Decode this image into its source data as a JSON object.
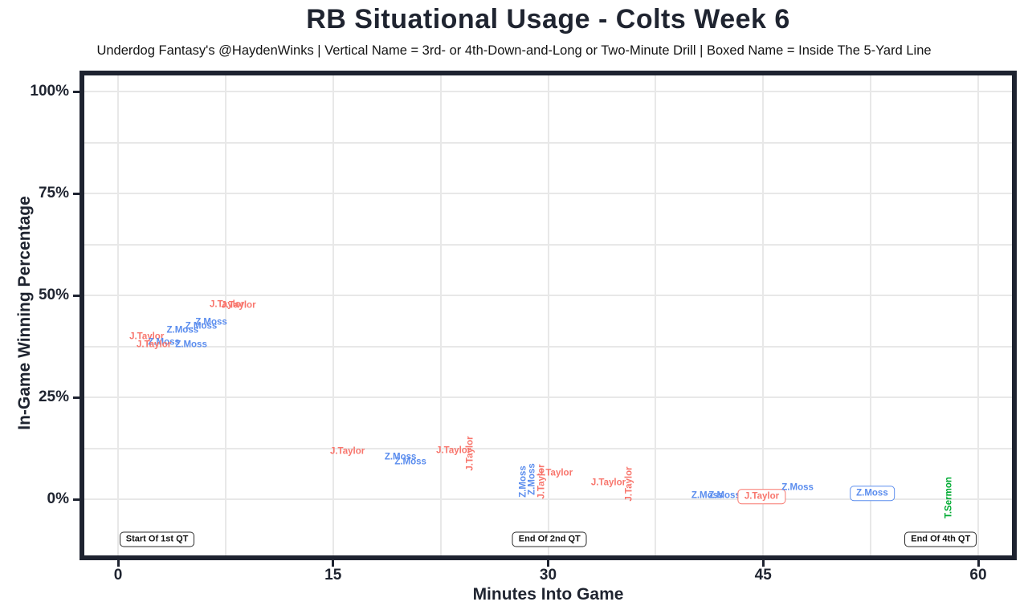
{
  "header": {
    "title": "RB Situational Usage - Colts Week 6",
    "subtitle": "Underdog Fantasy's @HaydenWinks | Vertical Name = 3rd- or 4th-Down-and-Long or Two-Minute Drill | Boxed Name = Inside The 5-Yard Line"
  },
  "chart_data": {
    "type": "scatter",
    "title": "RB Situational Usage - Colts Week 6",
    "xlabel": "Minutes Into Game",
    "ylabel": "In-Game Winning Percentage",
    "xlim": [
      0,
      60
    ],
    "ylim": [
      0,
      100
    ],
    "grid": true,
    "x_ticks": [
      {
        "value": 0,
        "label": "0"
      },
      {
        "value": 15,
        "label": "15"
      },
      {
        "value": 30,
        "label": "30"
      },
      {
        "value": 45,
        "label": "45"
      },
      {
        "value": 60,
        "label": "60"
      }
    ],
    "y_ticks": [
      {
        "value": 0,
        "label": "0%"
      },
      {
        "value": 25,
        "label": "25%"
      },
      {
        "value": 50,
        "label": "50%"
      },
      {
        "value": 75,
        "label": "75%"
      },
      {
        "value": 100,
        "label": "100%"
      }
    ],
    "x_gridlines": [
      0,
      7.5,
      15,
      22.5,
      30,
      37.5,
      45,
      52.5,
      60
    ],
    "y_gridlines": [
      0,
      12.5,
      25,
      37.5,
      50,
      62.5,
      75,
      87.5,
      100
    ],
    "colors": {
      "taylor": "#F8766D",
      "moss": "#5B8DEE",
      "sermon": "#00AB32",
      "axis": "#1f2430",
      "grid": "#e8e8e8"
    },
    "points": [
      {
        "label": "J.Taylor",
        "minutes": 7.6,
        "win_pct": 47.6,
        "color": "taylor",
        "orientation": "horizontal",
        "boxed": false
      },
      {
        "label": "J.Taylor",
        "minutes": 8.4,
        "win_pct": 47.4,
        "color": "taylor",
        "orientation": "horizontal",
        "boxed": false
      },
      {
        "label": "Z.Moss",
        "minutes": 6.5,
        "win_pct": 43.3,
        "color": "moss",
        "orientation": "horizontal",
        "boxed": false
      },
      {
        "label": "Z.Moss",
        "minutes": 5.8,
        "win_pct": 42.3,
        "color": "moss",
        "orientation": "horizontal",
        "boxed": false
      },
      {
        "label": "Z.Moss",
        "minutes": 4.5,
        "win_pct": 41.3,
        "color": "moss",
        "orientation": "horizontal",
        "boxed": false
      },
      {
        "label": "J.Taylor",
        "minutes": 2.0,
        "win_pct": 39.8,
        "color": "taylor",
        "orientation": "horizontal",
        "boxed": false
      },
      {
        "label": "Z.Moss",
        "minutes": 3.2,
        "win_pct": 38.4,
        "color": "moss",
        "orientation": "horizontal",
        "boxed": false
      },
      {
        "label": "J.Taylor",
        "minutes": 2.5,
        "win_pct": 37.8,
        "color": "taylor",
        "orientation": "horizontal",
        "boxed": false
      },
      {
        "label": "Z.Moss",
        "minutes": 5.1,
        "win_pct": 37.8,
        "color": "moss",
        "orientation": "horizontal",
        "boxed": false
      },
      {
        "label": "J.Taylor",
        "minutes": 16.0,
        "win_pct": 11.6,
        "color": "taylor",
        "orientation": "horizontal",
        "boxed": false
      },
      {
        "label": "Z.Moss",
        "minutes": 19.7,
        "win_pct": 10.2,
        "color": "moss",
        "orientation": "horizontal",
        "boxed": false
      },
      {
        "label": "Z.Moss",
        "minutes": 20.4,
        "win_pct": 9.1,
        "color": "moss",
        "orientation": "horizontal",
        "boxed": false
      },
      {
        "label": "J.Taylor",
        "minutes": 23.4,
        "win_pct": 11.8,
        "color": "taylor",
        "orientation": "horizontal",
        "boxed": false
      },
      {
        "label": "J.Taylor",
        "minutes": 24.6,
        "win_pct": 11.2,
        "color": "taylor",
        "orientation": "vertical",
        "boxed": false
      },
      {
        "label": "J.Taylor",
        "minutes": 30.5,
        "win_pct": 6.3,
        "color": "taylor",
        "orientation": "horizontal",
        "boxed": false
      },
      {
        "label": "Z.Moss",
        "minutes": 28.3,
        "win_pct": 4.3,
        "color": "moss",
        "orientation": "vertical",
        "boxed": false
      },
      {
        "label": "Z.Moss",
        "minutes": 28.9,
        "win_pct": 4.9,
        "color": "moss",
        "orientation": "vertical",
        "boxed": false
      },
      {
        "label": "J.Taylor",
        "minutes": 29.6,
        "win_pct": 4.3,
        "color": "taylor",
        "orientation": "vertical",
        "boxed": false
      },
      {
        "label": "J.Taylor",
        "minutes": 34.2,
        "win_pct": 3.9,
        "color": "taylor",
        "orientation": "horizontal",
        "boxed": false
      },
      {
        "label": "J.Taylor",
        "minutes": 35.7,
        "win_pct": 3.7,
        "color": "taylor",
        "orientation": "vertical",
        "boxed": false
      },
      {
        "label": "Z.Moss",
        "minutes": 41.1,
        "win_pct": 0.8,
        "color": "moss",
        "orientation": "horizontal",
        "boxed": false
      },
      {
        "label": "Z.Moss",
        "minutes": 42.3,
        "win_pct": 0.8,
        "color": "moss",
        "orientation": "horizontal",
        "boxed": false
      },
      {
        "label": "J.Taylor",
        "minutes": 44.9,
        "win_pct": 0.6,
        "color": "taylor",
        "orientation": "horizontal",
        "boxed": true
      },
      {
        "label": "Z.Moss",
        "minutes": 47.4,
        "win_pct": 2.8,
        "color": "moss",
        "orientation": "horizontal",
        "boxed": false
      },
      {
        "label": "Z.Moss",
        "minutes": 52.6,
        "win_pct": 1.4,
        "color": "moss",
        "orientation": "horizontal",
        "boxed": true
      },
      {
        "label": "T.Sermon",
        "minutes": 58.0,
        "win_pct": 0.4,
        "color": "sermon",
        "orientation": "vertical",
        "boxed": false
      }
    ],
    "annotations": [
      {
        "label": "Start Of 1st QT",
        "minutes": 0.1,
        "win_pct": -9.8
      },
      {
        "label": "End Of 2nd QT",
        "minutes": 30.1,
        "win_pct": -9.8
      },
      {
        "label": "End Of 4th QT",
        "minutes": 59.9,
        "win_pct": -9.8
      }
    ]
  }
}
